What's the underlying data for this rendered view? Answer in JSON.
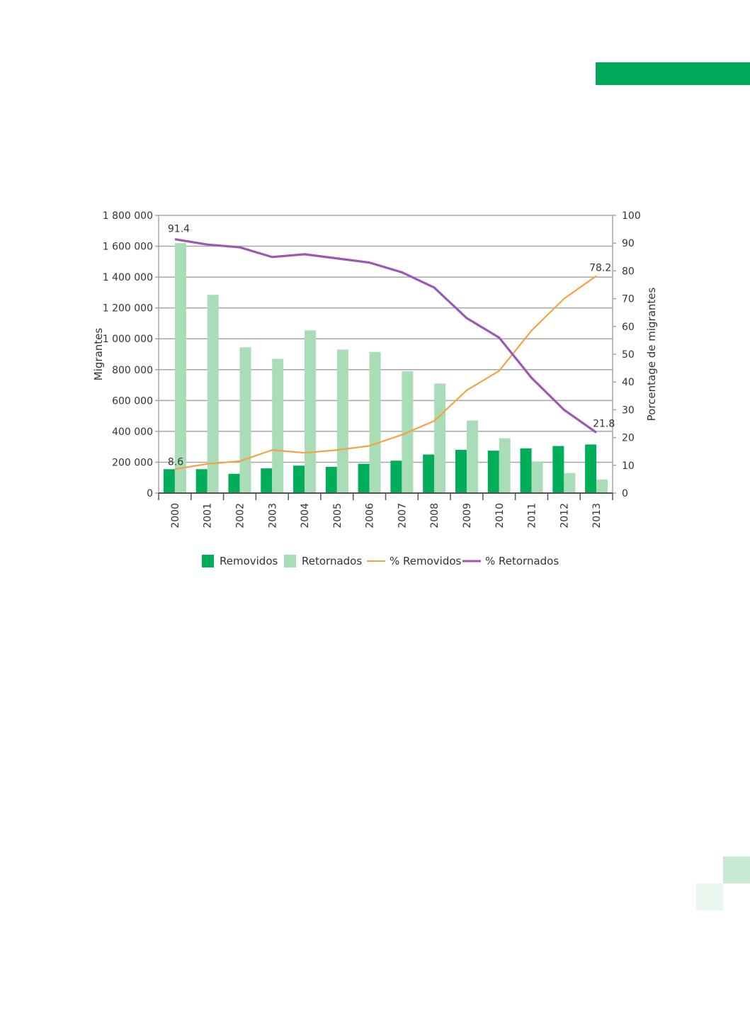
{
  "colors": {
    "accent": "#00a95c",
    "removidos": "#00ae5a",
    "retornados": "#a8ddb8",
    "pct_removidos": "#f5a244",
    "pct_retornados": "#9b59b6",
    "grid": "#a6a6a6",
    "square_1": "#c8ead3",
    "square_2": "#eaf7ee"
  },
  "chart_data": {
    "type": "bar",
    "title": "",
    "categories": [
      "2000",
      "2001",
      "2002",
      "2003",
      "2004",
      "2005",
      "2006",
      "2007",
      "2008",
      "2009",
      "2010",
      "2011",
      "2012",
      "2013"
    ],
    "series": [
      {
        "name": "Removidos",
        "type": "bar",
        "axis": "left",
        "values": [
          155000,
          155000,
          125000,
          160000,
          178000,
          170000,
          190000,
          210000,
          250000,
          280000,
          275000,
          290000,
          305000,
          315000
        ]
      },
      {
        "name": "Retornados",
        "type": "bar",
        "axis": "left",
        "values": [
          1620000,
          1285000,
          945000,
          870000,
          1055000,
          930000,
          915000,
          790000,
          710000,
          470000,
          355000,
          205000,
          130000,
          88000
        ]
      },
      {
        "name": "% Removidos",
        "type": "line",
        "axis": "right",
        "values": [
          8.6,
          10.5,
          11.5,
          15.5,
          14.5,
          15.5,
          17.0,
          21.0,
          26.0,
          37.0,
          44.0,
          58.5,
          70.0,
          78.2
        ]
      },
      {
        "name": "% Retornados",
        "type": "line",
        "axis": "right",
        "values": [
          91.4,
          89.5,
          88.5,
          85.0,
          86.0,
          84.5,
          83.0,
          79.5,
          74.0,
          63.0,
          56.0,
          41.5,
          30.0,
          21.8
        ]
      }
    ],
    "y_left": {
      "label": "Migrantes",
      "ylim": [
        0,
        1800000
      ],
      "ticks": [
        0,
        200000,
        400000,
        600000,
        800000,
        1000000,
        1200000,
        1400000,
        1600000,
        1800000
      ],
      "tick_labels": [
        "0",
        "200 000",
        "400 000",
        "600 000",
        "800 000",
        "1 000 000",
        "1 200 000",
        "1 400 000",
        "1 600 000",
        "1 800 000"
      ]
    },
    "y_right": {
      "label": "Porcentage de migrantes",
      "ylim": [
        0,
        100
      ],
      "ticks": [
        0,
        10,
        20,
        30,
        40,
        50,
        60,
        70,
        80,
        90,
        100
      ],
      "tick_labels": [
        "0",
        "10",
        "20",
        "30",
        "40",
        "50",
        "60",
        "70",
        "80",
        "90",
        "100"
      ]
    },
    "grid": true,
    "legend_position": "bottom",
    "annotations": [
      {
        "series": "% Retornados",
        "index": 0,
        "text": "91.4"
      },
      {
        "series": "% Removidos",
        "index": 0,
        "text": "8.6"
      },
      {
        "series": "% Removidos",
        "index": 13,
        "text": "78.2"
      },
      {
        "series": "% Retornados",
        "index": 13,
        "text": "21.8"
      }
    ]
  }
}
